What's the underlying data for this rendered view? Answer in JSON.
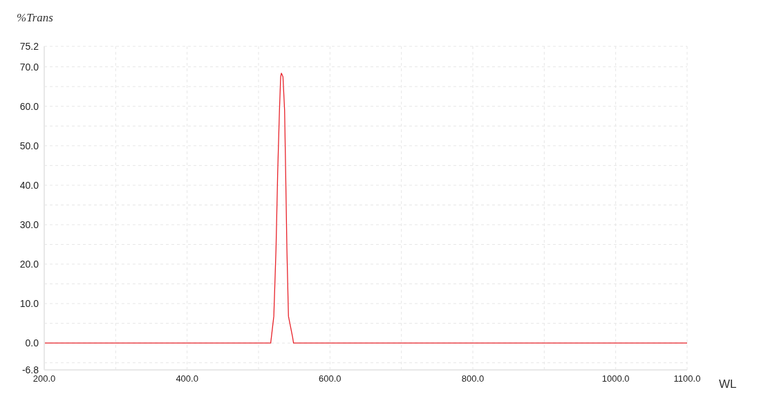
{
  "chart_data": {
    "type": "line",
    "xlabel": "WL",
    "ylabel": "%Trans",
    "x": [
      200,
      517,
      518,
      521.4,
      524.5,
      526.8,
      529.3,
      531,
      532,
      534.2,
      536.5,
      538,
      539.7,
      541.9,
      547.7,
      549,
      1100
    ],
    "series": [
      {
        "color": "#e8232a",
        "values": [
          0,
          0,
          1.5,
          6.8,
          24,
          43,
          59,
          67.5,
          68.4,
          67.5,
          59,
          43,
          24,
          6.8,
          1.5,
          0,
          0
        ]
      }
    ],
    "xlim": [
      200,
      1100
    ],
    "xticks": [
      {
        "value": 200,
        "label": "200.0"
      },
      {
        "value": 300,
        "label": null
      },
      {
        "value": 400,
        "label": "400.0"
      },
      {
        "value": 500,
        "label": null
      },
      {
        "value": 600,
        "label": "600.0"
      },
      {
        "value": 700,
        "label": null
      },
      {
        "value": 800,
        "label": "800.0"
      },
      {
        "value": 900,
        "label": null
      },
      {
        "value": 1000,
        "label": "1000.0"
      },
      {
        "value": 1100,
        "label": "1100.0"
      }
    ],
    "ylim": [
      -6.8,
      75.2
    ],
    "yticks": [
      {
        "value": -6.8,
        "label": "-6.8"
      },
      {
        "value": -5,
        "label": null
      },
      {
        "value": 0,
        "label": "0.0"
      },
      {
        "value": 5,
        "label": null
      },
      {
        "value": 10,
        "label": "10.0"
      },
      {
        "value": 15,
        "label": null
      },
      {
        "value": 20,
        "label": "20.0"
      },
      {
        "value": 25,
        "label": null
      },
      {
        "value": 30,
        "label": "30.0"
      },
      {
        "value": 35,
        "label": null
      },
      {
        "value": 40,
        "label": "40.0"
      },
      {
        "value": 45,
        "label": null
      },
      {
        "value": 50,
        "label": "50.0"
      },
      {
        "value": 55,
        "label": null
      },
      {
        "value": 60,
        "label": "60.0"
      },
      {
        "value": 65,
        "label": null
      },
      {
        "value": 70,
        "label": "70.0"
      },
      {
        "value": 75.2,
        "label": "75.2"
      }
    ],
    "grid": true,
    "marker": "none",
    "line_style": "solid"
  }
}
